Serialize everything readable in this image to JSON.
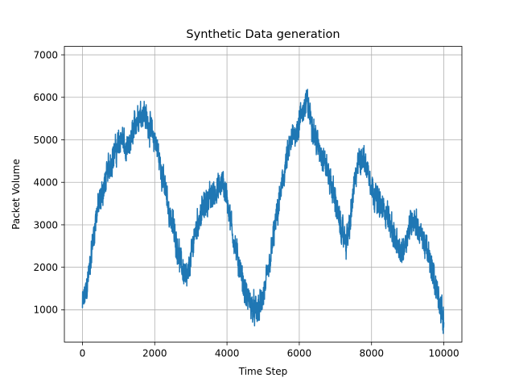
{
  "chart_data": {
    "type": "line",
    "title": "Synthetic Data generation",
    "xlabel": "Time Step",
    "ylabel": "Packet Volume",
    "xlim": [
      -500,
      10500
    ],
    "ylim": [
      240,
      7200
    ],
    "xticks": [
      0,
      2000,
      4000,
      6000,
      8000,
      10000
    ],
    "yticks": [
      1000,
      2000,
      3000,
      4000,
      5000,
      6000,
      7000
    ],
    "grid": true,
    "legend": "none",
    "series": [
      {
        "color": "#1f77b4",
        "noise_amplitude": 320,
        "x": [
          0,
          100,
          200,
          300,
          400,
          500,
          600,
          700,
          800,
          900,
          1000,
          1100,
          1200,
          1300,
          1400,
          1500,
          1600,
          1700,
          1800,
          1900,
          2000,
          2100,
          2200,
          2300,
          2400,
          2500,
          2600,
          2700,
          2800,
          2900,
          3000,
          3100,
          3200,
          3300,
          3400,
          3500,
          3600,
          3700,
          3800,
          3900,
          4000,
          4100,
          4200,
          4300,
          4400,
          4500,
          4600,
          4700,
          4800,
          4900,
          5000,
          5100,
          5200,
          5300,
          5400,
          5500,
          5600,
          5700,
          5800,
          5900,
          6000,
          6100,
          6200,
          6300,
          6400,
          6500,
          6600,
          6700,
          6800,
          6900,
          7000,
          7100,
          7200,
          7300,
          7400,
          7500,
          7600,
          7700,
          7800,
          7900,
          8000,
          8100,
          8200,
          8300,
          8400,
          8500,
          8600,
          8700,
          8800,
          8900,
          9000,
          9100,
          9200,
          9300,
          9400,
          9500,
          9600,
          9700,
          9800,
          9900,
          10000
        ],
        "y": [
          1100,
          1400,
          2000,
          2700,
          3300,
          3600,
          3900,
          4300,
          4500,
          4700,
          4900,
          5100,
          4700,
          4800,
          5200,
          5500,
          5600,
          5700,
          5400,
          5200,
          5000,
          4700,
          4200,
          3800,
          3300,
          3000,
          2600,
          2200,
          1900,
          1700,
          2200,
          2800,
          3100,
          3300,
          3500,
          3600,
          3700,
          3800,
          3900,
          4000,
          3600,
          3100,
          2600,
          2200,
          1800,
          1400,
          1200,
          1050,
          1000,
          1050,
          1300,
          1700,
          2200,
          2800,
          3300,
          3800,
          4300,
          4700,
          5000,
          5200,
          5400,
          5700,
          5900,
          5600,
          5200,
          4900,
          4700,
          4500,
          4200,
          3900,
          3600,
          3100,
          2800,
          2600,
          3000,
          3800,
          4300,
          4600,
          4500,
          4300,
          3900,
          3700,
          3500,
          3400,
          3300,
          3100,
          2800,
          2500,
          2300,
          2500,
          2800,
          3100,
          3100,
          2900,
          2700,
          2500,
          2200,
          1900,
          1500,
          1100,
          700
        ]
      }
    ]
  }
}
